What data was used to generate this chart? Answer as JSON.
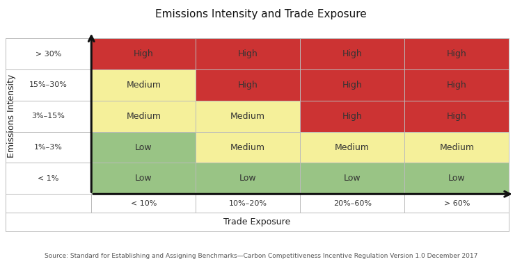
{
  "title": "Emissions Intensity and Trade Exposure",
  "source": "Source: Standard for Establishing and Assigning Benchmarks—Carbon Competitiveness Incentive Regulation Version 1.0 December 2017",
  "ylabel": "Emissions Intensity",
  "xlabel": "Trade Exposure",
  "row_labels": [
    "> 30%",
    "15%–30%",
    "3%–15%",
    "1%–3%",
    "< 1%"
  ],
  "col_labels": [
    "< 10%",
    "10%–20%",
    "20%–60%",
    "> 60%"
  ],
  "cell_data": [
    [
      "High",
      "High",
      "High",
      "High"
    ],
    [
      "Medium",
      "High",
      "High",
      "High"
    ],
    [
      "Medium",
      "Medium",
      "High",
      "High"
    ],
    [
      "Low",
      "Medium",
      "Medium",
      "Medium"
    ],
    [
      "Low",
      "Low",
      "Low",
      "Low"
    ]
  ],
  "colors": {
    "High": "#cc3333",
    "Medium": "#f5f09a",
    "Low": "#99c485"
  },
  "cell_text_color": "#333333",
  "grid_color": "#bbbbbb",
  "bg_color": "#ffffff",
  "row_label_bg": "#ffffff",
  "arrow_color": "#111111",
  "title_fontsize": 11,
  "label_fontsize": 8,
  "cell_fontsize": 9,
  "source_fontsize": 6.5
}
